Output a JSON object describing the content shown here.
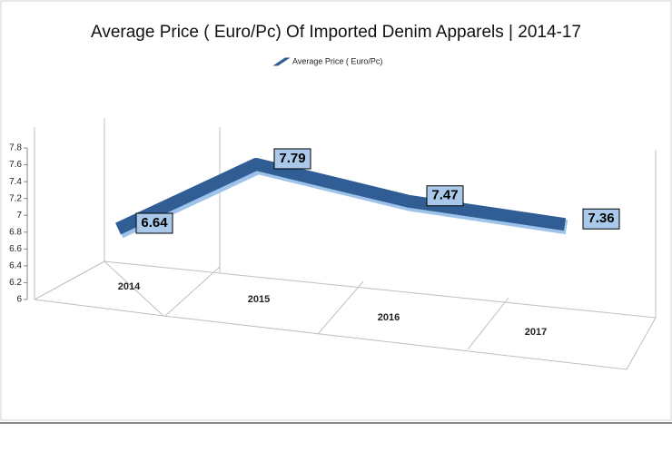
{
  "chart_data": {
    "type": "line3d",
    "title": "Average Price ( Euro/Pc) Of Imported Denim Apparels | 2014-17",
    "categories": [
      "2014",
      "2015",
      "2016",
      "2017"
    ],
    "series": [
      {
        "name": "Average Price ( Euro/Pc)",
        "color": "#2f5d94",
        "values": [
          6.64,
          7.79,
          7.47,
          7.36
        ]
      }
    ],
    "ylim": [
      6,
      7.8
    ],
    "yticks": [
      6,
      6.2,
      6.4,
      6.6,
      6.8,
      7,
      7.2,
      7.4,
      7.6,
      7.8
    ],
    "legend": "top"
  }
}
